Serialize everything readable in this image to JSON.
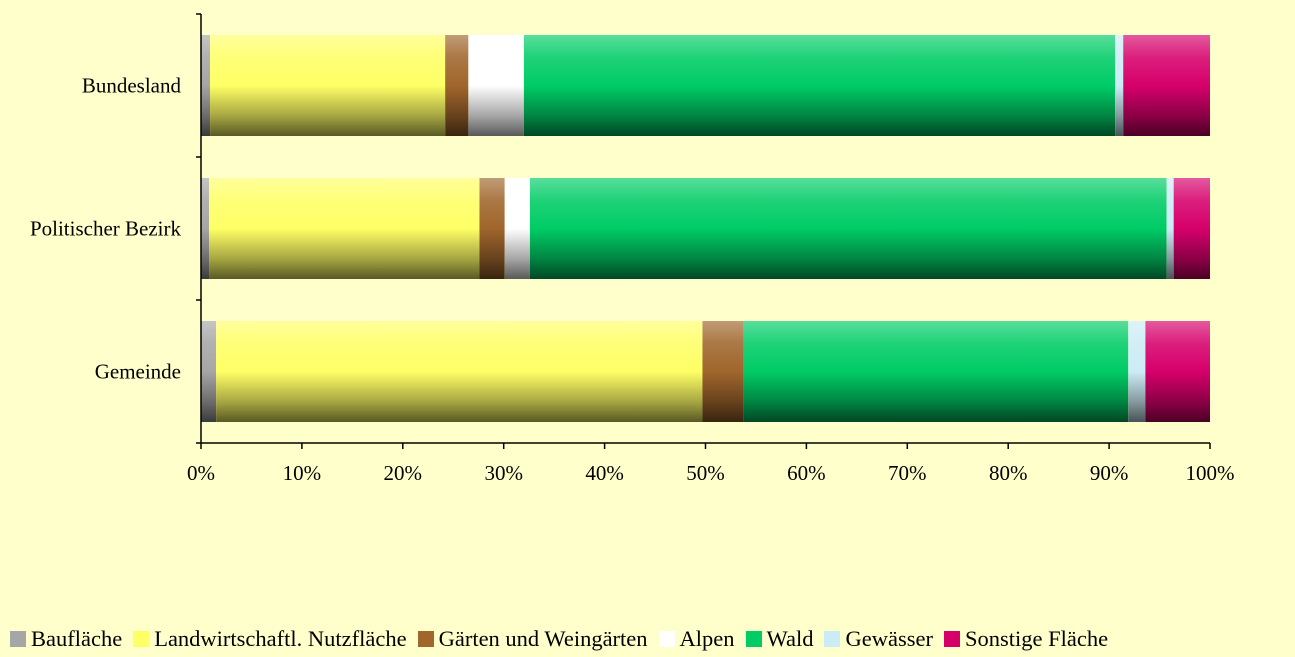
{
  "chart_data": {
    "type": "bar",
    "orientation": "horizontal",
    "stacked": "percent",
    "title": "",
    "xlabel": "",
    "ylabel": "",
    "xlim": [
      0,
      100
    ],
    "x_ticks": [
      "0%",
      "10%",
      "20%",
      "30%",
      "40%",
      "50%",
      "60%",
      "70%",
      "80%",
      "90%",
      "100%"
    ],
    "categories": [
      "Bundesland",
      "Politischer Bezirk",
      "Gemeinde"
    ],
    "series": [
      {
        "name": "Baufläche",
        "color": "#A6A6A6",
        "values": [
          0.9,
          0.8,
          1.5
        ]
      },
      {
        "name": "Landwirtschaftl. Nutzfläche",
        "color": "#FFFF66",
        "values": [
          23.3,
          26.8,
          48.2
        ]
      },
      {
        "name": "Gärten und Weingärten",
        "color": "#A0662C",
        "values": [
          2.3,
          2.5,
          4.1
        ]
      },
      {
        "name": "Alpen",
        "color": "#FFFFFF",
        "values": [
          5.5,
          2.5,
          0.0
        ]
      },
      {
        "name": "Wald",
        "color": "#00CC66",
        "values": [
          58.6,
          63.1,
          38.1
        ]
      },
      {
        "name": "Gewässer",
        "color": "#CCECF5",
        "values": [
          0.8,
          0.7,
          1.7
        ]
      },
      {
        "name": "Sonstige Fläche",
        "color": "#D6006B",
        "values": [
          8.6,
          3.6,
          6.4
        ]
      }
    ],
    "legend_position": "bottom",
    "grid": false
  }
}
